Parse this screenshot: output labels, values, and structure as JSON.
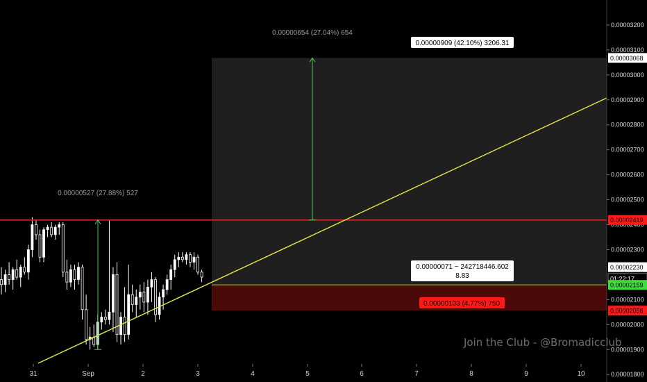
{
  "chart_data": {
    "type": "candlestick",
    "title": "",
    "watermark": "Join the Club - @Bromadicclub",
    "price_axis": {
      "ylim": [
        1.77e-05,
        3.3e-05
      ],
      "ticks": [
        "0.00003200",
        "0.00003100",
        "0.00003000",
        "0.00002900",
        "0.00002800",
        "0.00002700",
        "0.00002600",
        "0.00002500",
        "0.00002400",
        "0.00002300",
        "0.00002100",
        "0.00002000",
        "0.00001900",
        "0.00001800"
      ],
      "highlighted": [
        {
          "label": "0.00003068",
          "value": 3.068e-05,
          "bg": "#ffffff",
          "fg": "#000000"
        },
        {
          "label": "0.00002419",
          "value": 2.419e-05,
          "bg": "#ff1a1a",
          "fg": "#000000"
        },
        {
          "label": "0.00002230",
          "value": 2.23e-05,
          "bg": "#ffffff",
          "fg": "#000000"
        },
        {
          "label": "01:22:17",
          "value": 2.185e-05,
          "bg": "#000000",
          "fg": "#ffffff"
        },
        {
          "label": "0.00002159",
          "value": 2.159e-05,
          "bg": "#3fdc3f",
          "fg": "#000000"
        },
        {
          "label": "0.00002056",
          "value": 2.056e-05,
          "bg": "#ff1a1a",
          "fg": "#000000"
        }
      ]
    },
    "time_axis": {
      "labels": [
        "31",
        "Sep",
        "2",
        "3",
        "4",
        "5",
        "6",
        "7",
        "8",
        "9",
        "10"
      ]
    },
    "candles": [
      {
        "o": 2.18e-05,
        "h": 2.23e-05,
        "l": 2.12e-05,
        "c": 2.16e-05
      },
      {
        "o": 2.16e-05,
        "h": 2.22e-05,
        "l": 2.13e-05,
        "c": 2.2e-05
      },
      {
        "o": 2.2e-05,
        "h": 2.25e-05,
        "l": 2.16e-05,
        "c": 2.18e-05
      },
      {
        "o": 2.18e-05,
        "h": 2.23e-05,
        "l": 2.14e-05,
        "c": 2.22e-05
      },
      {
        "o": 2.22e-05,
        "h": 2.26e-05,
        "l": 2.18e-05,
        "c": 2.19e-05
      },
      {
        "o": 2.19e-05,
        "h": 2.24e-05,
        "l": 2.15e-05,
        "c": 2.23e-05
      },
      {
        "o": 2.23e-05,
        "h": 2.27e-05,
        "l": 2.2e-05,
        "c": 2.21e-05
      },
      {
        "o": 2.21e-05,
        "h": 2.32e-05,
        "l": 2.18e-05,
        "c": 2.3e-05
      },
      {
        "o": 2.3e-05,
        "h": 2.43e-05,
        "l": 2.27e-05,
        "c": 2.4e-05
      },
      {
        "o": 2.4e-05,
        "h": 2.42e-05,
        "l": 2.34e-05,
        "c": 2.36e-05
      },
      {
        "o": 2.36e-05,
        "h": 2.38e-05,
        "l": 2.25e-05,
        "c": 2.27e-05
      },
      {
        "o": 2.27e-05,
        "h": 2.39e-05,
        "l": 2.25e-05,
        "c": 2.38e-05
      },
      {
        "o": 2.38e-05,
        "h": 2.4e-05,
        "l": 2.35e-05,
        "c": 2.39e-05
      },
      {
        "o": 2.39e-05,
        "h": 2.41e-05,
        "l": 2.35e-05,
        "c": 2.36e-05
      },
      {
        "o": 2.36e-05,
        "h": 2.4e-05,
        "l": 2.34e-05,
        "c": 2.39e-05
      },
      {
        "o": 2.39e-05,
        "h": 2.41e-05,
        "l": 2.36e-05,
        "c": 2.4e-05
      },
      {
        "o": 2.4e-05,
        "h": 2.41e-05,
        "l": 2.19e-05,
        "c": 2.21e-05
      },
      {
        "o": 2.21e-05,
        "h": 2.26e-05,
        "l": 2.14e-05,
        "c": 2.17e-05
      },
      {
        "o": 2.17e-05,
        "h": 2.24e-05,
        "l": 2.15e-05,
        "c": 2.22e-05
      },
      {
        "o": 2.22e-05,
        "h": 2.24e-05,
        "l": 2.14e-05,
        "c": 2.18e-05
      },
      {
        "o": 2.18e-05,
        "h": 2.25e-05,
        "l": 2.16e-05,
        "c": 2.23e-05
      },
      {
        "o": 2.23e-05,
        "h": 2.24e-05,
        "l": 2.02e-05,
        "c": 2.06e-05
      },
      {
        "o": 2.06e-05,
        "h": 2.12e-05,
        "l": 1.92e-05,
        "c": 1.94e-05
      },
      {
        "o": 1.94e-05,
        "h": 1.99e-05,
        "l": 1.9e-05,
        "c": 1.95e-05
      },
      {
        "o": 1.95e-05,
        "h": 2e-05,
        "l": 1.91e-05,
        "c": 1.92e-05
      },
      {
        "o": 1.92e-05,
        "h": 2.04e-05,
        "l": 1.9e-05,
        "c": 2.01e-05
      },
      {
        "o": 2.01e-05,
        "h": 2.05e-05,
        "l": 1.98e-05,
        "c": 2.03e-05
      },
      {
        "o": 2.03e-05,
        "h": 2.06e-05,
        "l": 2e-05,
        "c": 2.02e-05
      },
      {
        "o": 2.02e-05,
        "h": 2.42e-05,
        "l": 2e-05,
        "c": 2.05e-05
      },
      {
        "o": 2.05e-05,
        "h": 2.23e-05,
        "l": 1.97e-05,
        "c": 2.2e-05
      },
      {
        "o": 2.2e-05,
        "h": 2.25e-05,
        "l": 1.93e-05,
        "c": 1.96e-05
      },
      {
        "o": 1.96e-05,
        "h": 2.05e-05,
        "l": 1.92e-05,
        "c": 2.03e-05
      },
      {
        "o": 2.03e-05,
        "h": 2.15e-05,
        "l": 1.93e-05,
        "c": 1.96e-05
      },
      {
        "o": 1.96e-05,
        "h": 2.24e-05,
        "l": 1.94e-05,
        "c": 2.12e-05
      },
      {
        "o": 2.12e-05,
        "h": 2.16e-05,
        "l": 2.05e-05,
        "c": 2.08e-05
      },
      {
        "o": 2.08e-05,
        "h": 2.14e-05,
        "l": 2.03e-05,
        "c": 2.11e-05
      },
      {
        "o": 2.11e-05,
        "h": 2.16e-05,
        "l": 2.06e-05,
        "c": 2.13e-05
      },
      {
        "o": 2.13e-05,
        "h": 2.17e-05,
        "l": 2.05e-05,
        "c": 2.09e-05
      },
      {
        "o": 2.09e-05,
        "h": 2.18e-05,
        "l": 2.04e-05,
        "c": 2.15e-05
      },
      {
        "o": 2.15e-05,
        "h": 2.21e-05,
        "l": 2.09e-05,
        "c": 2.18e-05
      },
      {
        "o": 2.18e-05,
        "h": 2.19e-05,
        "l": 2.01e-05,
        "c": 2.04e-05
      },
      {
        "o": 2.04e-05,
        "h": 2.13e-05,
        "l": 2.02e-05,
        "c": 2.11e-05
      },
      {
        "o": 2.11e-05,
        "h": 2.16e-05,
        "l": 2.06e-05,
        "c": 2.14e-05
      },
      {
        "o": 2.14e-05,
        "h": 2.2e-05,
        "l": 2.12e-05,
        "c": 2.18e-05
      },
      {
        "o": 2.18e-05,
        "h": 2.24e-05,
        "l": 2.14e-05,
        "c": 2.22e-05
      },
      {
        "o": 2.22e-05,
        "h": 2.28e-05,
        "l": 2.19e-05,
        "c": 2.26e-05
      },
      {
        "o": 2.26e-05,
        "h": 2.29e-05,
        "l": 2.23e-05,
        "c": 2.27e-05
      },
      {
        "o": 2.27e-05,
        "h": 2.29e-05,
        "l": 2.25e-05,
        "c": 2.26e-05
      },
      {
        "o": 2.26e-05,
        "h": 2.29e-05,
        "l": 2.24e-05,
        "c": 2.28e-05
      },
      {
        "o": 2.28e-05,
        "h": 2.29e-05,
        "l": 2.23e-05,
        "c": 2.25e-05
      },
      {
        "o": 2.25e-05,
        "h": 2.29e-05,
        "l": 2.22e-05,
        "c": 2.27e-05
      },
      {
        "o": 2.27e-05,
        "h": 2.28e-05,
        "l": 2.2e-05,
        "c": 2.21e-05
      },
      {
        "o": 2.21e-05,
        "h": 2.22e-05,
        "l": 2.17e-05,
        "c": 2.19e-05
      }
    ],
    "annotations": {
      "measure_long": {
        "label": "0.00000909 (42.10%) 3206.31"
      },
      "measure_target": {
        "label": "0.00000654 (27.04%) 654"
      },
      "measure_past": {
        "label": "0.00000527 (27.88%) 527"
      },
      "measure_entry": {
        "label_line1": "0.00000071 ~ 242718446.602",
        "label_line2": "8.83"
      },
      "measure_stop": {
        "label": "0.00000103 (4.77%) 750"
      },
      "resistance": {
        "value": 2.419e-05
      },
      "entry_price": {
        "value": 2.159e-05
      },
      "stop_price": {
        "value": 2.056e-05
      },
      "target_price": {
        "value": 3.068e-05
      },
      "trendline": {
        "color": "#e8e84a"
      }
    },
    "colors": {
      "up": "#ffffff",
      "down": "#ffffff",
      "grid": "none",
      "resistance": "#ff2a2a"
    }
  }
}
